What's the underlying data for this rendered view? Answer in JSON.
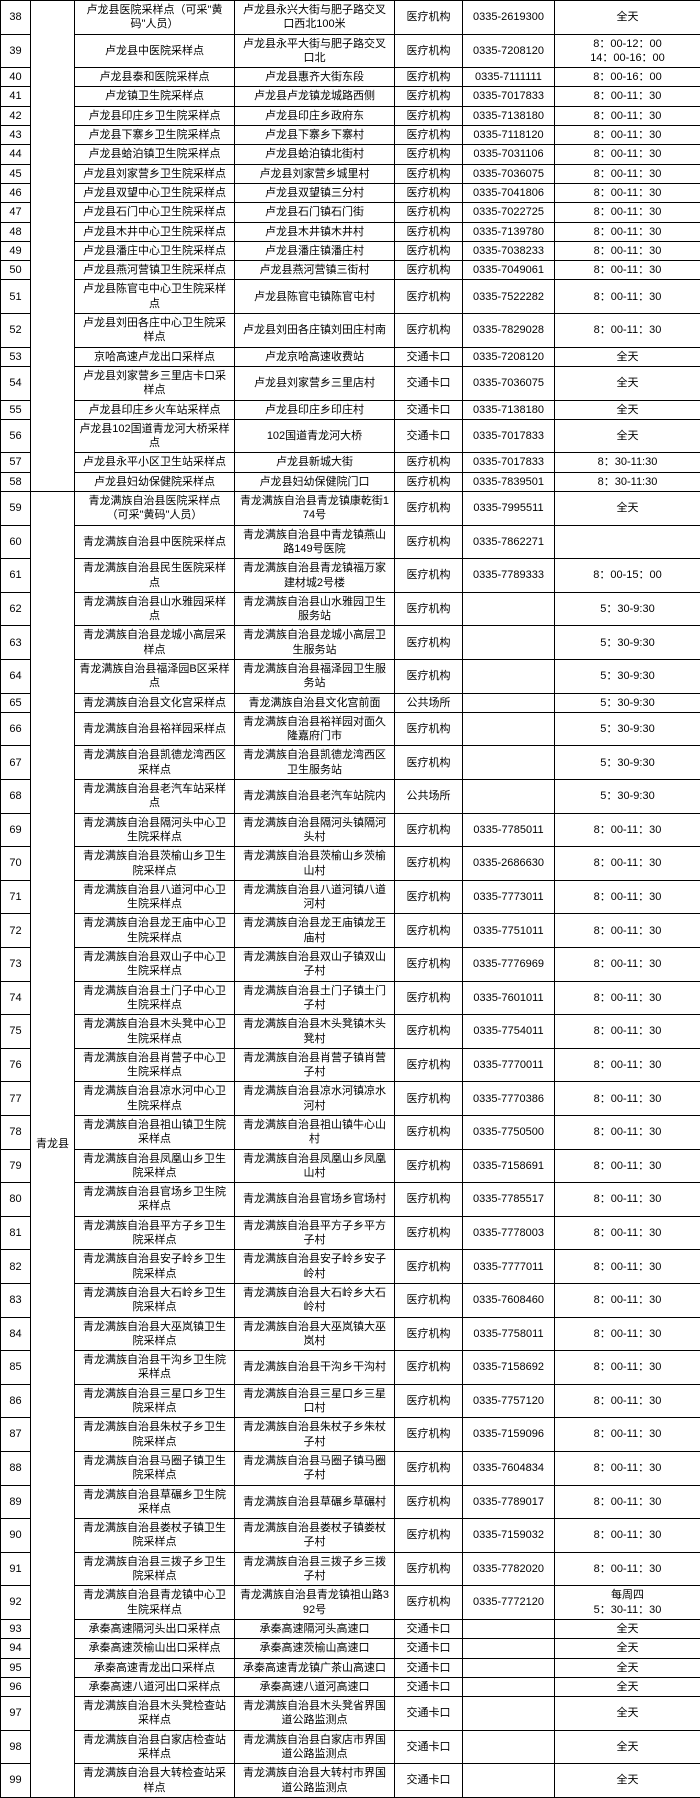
{
  "rows": [
    {
      "idx": "38",
      "county": "",
      "name": "卢龙县医院采样点（可采\"黄码\"人员）",
      "addr": "卢龙县永兴大街与肥子路交叉口西北100米",
      "type": "医疗机构",
      "phone": "0335-2619300",
      "time": "全天"
    },
    {
      "idx": "39",
      "county": "",
      "name": "卢龙县中医院采样点",
      "addr": "卢龙县永平大街与肥子路交叉口北",
      "type": "医疗机构",
      "phone": "0335-7208120",
      "time": "8：00-12：00\n14：00-16：00"
    },
    {
      "idx": "40",
      "county": "",
      "name": "卢龙县泰和医院采样点",
      "addr": "卢龙县惠齐大街东段",
      "type": "医疗机构",
      "phone": "0335-7111111",
      "time": "8：00-16：00"
    },
    {
      "idx": "41",
      "county": "",
      "name": "卢龙镇卫生院采样点",
      "addr": "卢龙县卢龙镇龙城路西侧",
      "type": "医疗机构",
      "phone": "0335-7017833",
      "time": "8：00-11：30"
    },
    {
      "idx": "42",
      "county": "",
      "name": "卢龙县印庄乡卫生院采样点",
      "addr": "卢龙县印庄乡政府东",
      "type": "医疗机构",
      "phone": "0335-7138180",
      "time": "8：00-11：30"
    },
    {
      "idx": "43",
      "county": "",
      "name": "卢龙县下寨乡卫生院采样点",
      "addr": "卢龙县下寨乡下寨村",
      "type": "医疗机构",
      "phone": "0335-7118120",
      "time": "8：00-11：30"
    },
    {
      "idx": "44",
      "county": "",
      "name": "卢龙县蛤泊镇卫生院采样点",
      "addr": "卢龙县蛤泊镇北街村",
      "type": "医疗机构",
      "phone": "0335-7031106",
      "time": "8：00-11：30"
    },
    {
      "idx": "45",
      "county": "",
      "name": "卢龙县刘家营乡卫生院采样点",
      "addr": "卢龙县刘家营乡城里村",
      "type": "医疗机构",
      "phone": "0335-7036075",
      "time": "8：00-11：30"
    },
    {
      "idx": "46",
      "county": "",
      "name": "卢龙县双望中心卫生院采样点",
      "addr": "卢龙县双望镇三分村",
      "type": "医疗机构",
      "phone": "0335-7041806",
      "time": "8：00-11：30"
    },
    {
      "idx": "47",
      "county": "",
      "name": "卢龙县石门中心卫生院采样点",
      "addr": "卢龙县石门镇石门街",
      "type": "医疗机构",
      "phone": "0335-7022725",
      "time": "8：00-11：30"
    },
    {
      "idx": "48",
      "county": "",
      "name": "卢龙县木井中心卫生院采样点",
      "addr": "卢龙县木井镇木井村",
      "type": "医疗机构",
      "phone": "0335-7139780",
      "time": "8：00-11：30"
    },
    {
      "idx": "49",
      "county": "",
      "name": "卢龙县潘庄中心卫生院采样点",
      "addr": "卢龙县潘庄镇潘庄村",
      "type": "医疗机构",
      "phone": "0335-7038233",
      "time": "8：00-11：30"
    },
    {
      "idx": "50",
      "county": "",
      "name": "卢龙县燕河营镇卫生院采样点",
      "addr": "卢龙县燕河营镇三街村",
      "type": "医疗机构",
      "phone": "0335-7049061",
      "time": "8：00-11：30"
    },
    {
      "idx": "51",
      "county": "",
      "name": "卢龙县陈官屯中心卫生院采样点",
      "addr": "卢龙县陈官屯镇陈官屯村",
      "type": "医疗机构",
      "phone": "0335-7522282",
      "time": "8：00-11：30"
    },
    {
      "idx": "52",
      "county": "",
      "name": "卢龙县刘田各庄中心卫生院采样点",
      "addr": "卢龙县刘田各庄镇刘田庄村南",
      "type": "医疗机构",
      "phone": "0335-7829028",
      "time": "8：00-11：30"
    },
    {
      "idx": "53",
      "county": "",
      "name": "京哈高速卢龙出口采样点",
      "addr": "卢龙京哈高速收费站",
      "type": "交通卡口",
      "phone": "0335-7208120",
      "time": "全天"
    },
    {
      "idx": "54",
      "county": "",
      "name": "卢龙县刘家营乡三里店卡口采样点",
      "addr": "卢龙县刘家营乡三里店村",
      "type": "交通卡口",
      "phone": "0335-7036075",
      "time": "全天"
    },
    {
      "idx": "55",
      "county": "",
      "name": "卢龙县印庄乡火车站采样点",
      "addr": "卢龙县印庄乡印庄村",
      "type": "交通卡口",
      "phone": "0335-7138180",
      "time": "全天"
    },
    {
      "idx": "56",
      "county": "",
      "name": "卢龙县102国道青龙河大桥采样点",
      "addr": "102国道青龙河大桥",
      "type": "交通卡口",
      "phone": "0335-7017833",
      "time": "全天"
    },
    {
      "idx": "57",
      "county": "",
      "name": "卢龙县永平小区卫生站采样点",
      "addr": "卢龙县新城大街",
      "type": "医疗机构",
      "phone": "0335-7017833",
      "time": "8：30-11:30"
    },
    {
      "idx": "58",
      "county": "",
      "name": "卢龙县妇幼保健院采样点",
      "addr": "卢龙县妇幼保健院门口",
      "type": "医疗机构",
      "phone": "0335-7839501",
      "time": "8：30-11:30"
    },
    {
      "idx": "59",
      "county": "",
      "name": "青龙满族自治县医院采样点（可采\"黄码\"人员）",
      "addr": "青龙满族自治县青龙镇康乾街174号",
      "type": "医疗机构",
      "phone": "0335-7995511",
      "time": "全天"
    },
    {
      "idx": "60",
      "county": "",
      "name": "青龙满族自治县中医院采样点",
      "addr": "青龙满族自治县中青龙镇燕山路149号医院",
      "type": "医疗机构",
      "phone": "0335-7862271",
      "time": ""
    },
    {
      "idx": "61",
      "county": "",
      "name": "青龙满族自治县民生医院采样点",
      "addr": "青龙满族自治县青龙镇福万家建材城2号楼",
      "type": "医疗机构",
      "phone": "0335-7789333",
      "time": "8：00-15：00"
    },
    {
      "idx": "62",
      "county": "",
      "name": "青龙满族自治县山水雅园采样点",
      "addr": "青龙满族自治县山水雅园卫生服务站",
      "type": "医疗机构",
      "phone": "",
      "time": "5：30-9:30"
    },
    {
      "idx": "63",
      "county": "",
      "name": "青龙满族自治县龙城小高层采样点",
      "addr": "青龙满族自治县龙城小高层卫生服务站",
      "type": "医疗机构",
      "phone": "",
      "time": "5：30-9:30"
    },
    {
      "idx": "64",
      "county": "",
      "name": "青龙满族自治县福泽园B区采样点",
      "addr": "青龙满族自治县福泽园卫生服务站",
      "type": "医疗机构",
      "phone": "",
      "time": "5：30-9:30"
    },
    {
      "idx": "65",
      "county": "",
      "name": "青龙满族自治县文化宫采样点",
      "addr": "青龙满族自治县文化宫前面",
      "type": "公共场所",
      "phone": "",
      "time": "5：30-9:30"
    },
    {
      "idx": "66",
      "county": "",
      "name": "青龙满族自治县裕祥园采样点",
      "addr": "青龙满族自治县裕祥园对面久隆嘉府门市",
      "type": "医疗机构",
      "phone": "",
      "time": "5：30-9:30"
    },
    {
      "idx": "67",
      "county": "",
      "name": "青龙满族自治县凯德龙湾西区采样点",
      "addr": "青龙满族自治县凯德龙湾西区卫生服务站",
      "type": "医疗机构",
      "phone": "",
      "time": "5：30-9:30"
    },
    {
      "idx": "68",
      "county": "",
      "name": "青龙满族自治县老汽车站采样点",
      "addr": "青龙满族自治县老汽车站院内",
      "type": "公共场所",
      "phone": "",
      "time": "5：30-9:30"
    },
    {
      "idx": "69",
      "county": "",
      "name": "青龙满族自治县隔河头中心卫生院采样点",
      "addr": "青龙满族自治县隔河头镇隔河头村",
      "type": "医疗机构",
      "phone": "0335-7785011",
      "time": "8：00-11：30"
    },
    {
      "idx": "70",
      "county": "",
      "name": "青龙满族自治县茨榆山乡卫生院采样点",
      "addr": "青龙满族自治县茨榆山乡茨榆山村",
      "type": "医疗机构",
      "phone": "0335-2686630",
      "time": "8：00-11：30"
    },
    {
      "idx": "71",
      "county": "",
      "name": "青龙满族自治县八道河中心卫生院采样点",
      "addr": "青龙满族自治县八道河镇八道河村",
      "type": "医疗机构",
      "phone": "0335-7773011",
      "time": "8：00-11：30"
    },
    {
      "idx": "72",
      "county": "",
      "name": "青龙满族自治县龙王庙中心卫生院采样点",
      "addr": "青龙满族自治县龙王庙镇龙王庙村",
      "type": "医疗机构",
      "phone": "0335-7751011",
      "time": "8：00-11：30"
    },
    {
      "idx": "73",
      "county": "",
      "name": "青龙满族自治县双山子中心卫生院采样点",
      "addr": "青龙满族自治县双山子镇双山子村",
      "type": "医疗机构",
      "phone": "0335-7776969",
      "time": "8：00-11：30"
    },
    {
      "idx": "74",
      "county": "",
      "name": "青龙满族自治县土门子中心卫生院采样点",
      "addr": "青龙满族自治县土门子镇土门子村",
      "type": "医疗机构",
      "phone": "0335-7601011",
      "time": "8：00-11：30"
    },
    {
      "idx": "75",
      "county": "",
      "name": "青龙满族自治县木头凳中心卫生院采样点",
      "addr": "青龙满族自治县木头凳镇木头凳村",
      "type": "医疗机构",
      "phone": "0335-7754011",
      "time": "8：00-11：30"
    },
    {
      "idx": "76",
      "county": "青龙县",
      "name": "青龙满族自治县肖营子中心卫生院采样点",
      "addr": "青龙满族自治县肖营子镇肖营子村",
      "type": "医疗机构",
      "phone": "0335-7770011",
      "time": "8：00-11：30"
    },
    {
      "idx": "77",
      "county": "",
      "name": "青龙满族自治县凉水河中心卫生院采样点",
      "addr": "青龙满族自治县凉水河镇凉水河村",
      "type": "医疗机构",
      "phone": "0335-7770386",
      "time": "8：00-11：30"
    },
    {
      "idx": "78",
      "county": "",
      "name": "青龙满族自治县祖山镇卫生院采样点",
      "addr": "青龙满族自治县祖山镇牛心山村",
      "type": "医疗机构",
      "phone": "0335-7750500",
      "time": "8：00-11：30"
    },
    {
      "idx": "79",
      "county": "",
      "name": "青龙满族自治县凤凰山乡卫生院采样点",
      "addr": "青龙满族自治县凤凰山乡凤凰山村",
      "type": "医疗机构",
      "phone": "0335-7158691",
      "time": "8：00-11：30"
    },
    {
      "idx": "80",
      "county": "",
      "name": "青龙满族自治县官场乡卫生院采样点",
      "addr": "青龙满族自治县官场乡官场村",
      "type": "医疗机构",
      "phone": "0335-7785517",
      "time": "8：00-11：30"
    },
    {
      "idx": "81",
      "county": "",
      "name": "青龙满族自治县平方子乡卫生院采样点",
      "addr": "青龙满族自治县平方子乡平方子村",
      "type": "医疗机构",
      "phone": "0335-7778003",
      "time": "8：00-11：30"
    },
    {
      "idx": "82",
      "county": "",
      "name": "青龙满族自治县安子岭乡卫生院采样点",
      "addr": "青龙满族自治县安子岭乡安子岭村",
      "type": "医疗机构",
      "phone": "0335-7777011",
      "time": "8：00-11：30"
    },
    {
      "idx": "83",
      "county": "",
      "name": "青龙满族自治县大石岭乡卫生院采样点",
      "addr": "青龙满族自治县大石岭乡大石岭村",
      "type": "医疗机构",
      "phone": "0335-7608460",
      "time": "8：00-11：30"
    },
    {
      "idx": "84",
      "county": "",
      "name": "青龙满族自治县大巫岚镇卫生院采样点",
      "addr": "青龙满族自治县大巫岚镇大巫岚村",
      "type": "医疗机构",
      "phone": "0335-7758011",
      "time": "8：00-11：30"
    },
    {
      "idx": "85",
      "county": "",
      "name": "青龙满族自治县干沟乡卫生院采样点",
      "addr": "青龙满族自治县干沟乡干沟村",
      "type": "医疗机构",
      "phone": "0335-7158692",
      "time": "8：00-11：30"
    },
    {
      "idx": "86",
      "county": "",
      "name": "青龙满族自治县三星口乡卫生院采样点",
      "addr": "青龙满族自治县三星口乡三星口村",
      "type": "医疗机构",
      "phone": "0335-7757120",
      "time": "8：00-11：30"
    },
    {
      "idx": "87",
      "county": "",
      "name": "青龙满族自治县朱杖子乡卫生院采样点",
      "addr": "青龙满族自治县朱杖子乡朱杖子村",
      "type": "医疗机构",
      "phone": "0335-7159096",
      "time": "8：00-11：30"
    },
    {
      "idx": "88",
      "county": "",
      "name": "青龙满族自治县马圈子镇卫生院采样点",
      "addr": "青龙满族自治县马圈子镇马圈子村",
      "type": "医疗机构",
      "phone": "0335-7604834",
      "time": "8：00-11：30"
    },
    {
      "idx": "89",
      "county": "",
      "name": "青龙满族自治县草碾乡卫生院采样点",
      "addr": "青龙满族自治县草碾乡草碾村",
      "type": "医疗机构",
      "phone": "0335-7789017",
      "time": "8：00-11：30"
    },
    {
      "idx": "90",
      "county": "",
      "name": "青龙满族自治县娄杖子镇卫生院采样点",
      "addr": "青龙满族自治县娄杖子镇娄杖子村",
      "type": "医疗机构",
      "phone": "0335-7159032",
      "time": "8：00-11：30"
    },
    {
      "idx": "91",
      "county": "",
      "name": "青龙满族自治县三拨子乡卫生院采样点",
      "addr": "青龙满族自治县三拨子乡三拨子村",
      "type": "医疗机构",
      "phone": "0335-7782020",
      "time": "8：00-11：30"
    },
    {
      "idx": "92",
      "county": "",
      "name": "青龙满族自治县青龙镇中心卫生院采样点",
      "addr": "青龙满族自治县青龙镇祖山路392号",
      "type": "医疗机构",
      "phone": "0335-7772120",
      "time": "每周四\n5：30-11：30"
    },
    {
      "idx": "93",
      "county": "",
      "name": "承秦高速隔河头出口采样点",
      "addr": "承秦高速隔河头高速口",
      "type": "交通卡口",
      "phone": "",
      "time": "全天"
    },
    {
      "idx": "94",
      "county": "",
      "name": "承秦高速茨榆山出口采样点",
      "addr": "承秦高速茨榆山高速口",
      "type": "交通卡口",
      "phone": "",
      "time": "全天"
    },
    {
      "idx": "95",
      "county": "",
      "name": "承秦高速青龙出口采样点",
      "addr": "承秦高速青龙镇广茶山高速口",
      "type": "交通卡口",
      "phone": "",
      "time": "全天"
    },
    {
      "idx": "96",
      "county": "",
      "name": "承秦高速八道河出口采样点",
      "addr": "承秦高速八道河高速口",
      "type": "交通卡口",
      "phone": "",
      "time": "全天"
    },
    {
      "idx": "97",
      "county": "",
      "name": "青龙满族自治县木头凳检查站采样点",
      "addr": "青龙满族自治县木头凳省界国道公路监测点",
      "type": "交通卡口",
      "phone": "",
      "time": "全天"
    },
    {
      "idx": "98",
      "county": "",
      "name": "青龙满族自治县白家店检查站采样点",
      "addr": "青龙满族自治县白家店市界国道公路监测点",
      "type": "交通卡口",
      "phone": "",
      "time": "全天"
    },
    {
      "idx": "99",
      "county": "",
      "name": "青龙满族自治县大转检查站采样点",
      "addr": "青龙满族自治县大转村市界国道公路监测点",
      "type": "交通卡口",
      "phone": "",
      "time": "全天"
    }
  ]
}
